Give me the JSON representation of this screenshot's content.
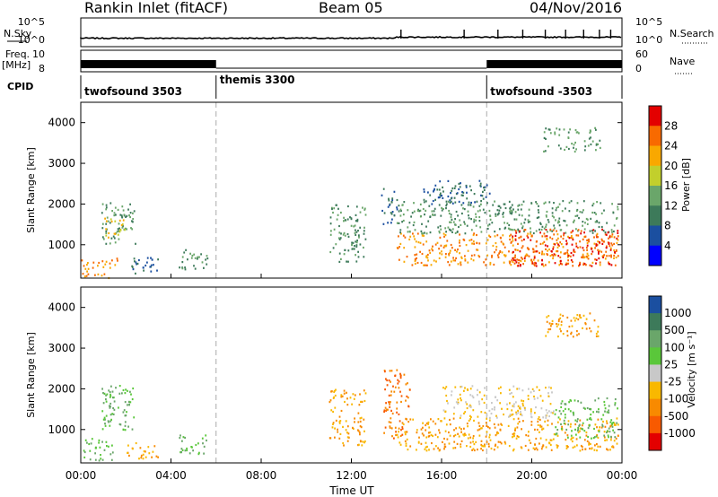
{
  "header": {
    "station": "Rankin Inlet (fitACF)",
    "beam": "Beam 05",
    "date": "04/Nov/2016"
  },
  "strips": {
    "nsky_label": "N.Sky",
    "nsky_ticks": [
      "10^5",
      "10^0"
    ],
    "nsearch_label": "N.Search",
    "nsearch_ticks": [
      "10^5",
      "10^0"
    ],
    "freq_label_1": "Freq.",
    "freq_label_2": "[MHz]",
    "freq_ticks": [
      "10",
      "8"
    ],
    "nave_label": "Nave",
    "nave_ticks": [
      "60",
      "0"
    ],
    "cpid_label": "CPID",
    "modes": [
      {
        "name": "twofsound 3503",
        "start": 0,
        "end": 6
      },
      {
        "name": "themis 3300",
        "start": 6,
        "end": 18
      },
      {
        "name": "twofsound -3503",
        "start": 18,
        "end": 24
      }
    ]
  },
  "chart_data": [
    {
      "type": "heatmap",
      "panel": "power",
      "xlabel": "",
      "ylabel": "Slant Range [km]",
      "xlim": [
        0,
        24
      ],
      "ylim": [
        180,
        4500
      ],
      "yticks": [
        "1000",
        "2000",
        "3000",
        "4000"
      ],
      "colorbar_label": "Power [dB]",
      "colorbar_ticks": [
        "28",
        "24",
        "20",
        "16",
        "12",
        "8",
        "4"
      ],
      "colorbar_colors": [
        "#e30000",
        "#f86a00",
        "#f9a800",
        "#c2cf2c",
        "#6aa66a",
        "#3d7a5a",
        "#1b4fa0",
        "#0000ff"
      ],
      "echo_regions": [
        {
          "t0": 0.0,
          "t1": 1.6,
          "r0": 200,
          "r1": 700,
          "level": 24
        },
        {
          "t0": 0.9,
          "t1": 2.4,
          "r0": 1000,
          "r1": 2100,
          "level": 12
        },
        {
          "t0": 1.0,
          "t1": 2.0,
          "r0": 1200,
          "r1": 1700,
          "level": 20
        },
        {
          "t0": 2.2,
          "t1": 3.4,
          "r0": 300,
          "r1": 700,
          "level": 8
        },
        {
          "t0": 4.3,
          "t1": 5.6,
          "r0": 400,
          "r1": 900,
          "level": 12
        },
        {
          "t0": 11.0,
          "t1": 12.6,
          "r0": 600,
          "r1": 2000,
          "level": 12
        },
        {
          "t0": 13.3,
          "t1": 14.0,
          "r0": 1500,
          "r1": 2400,
          "level": 8
        },
        {
          "t0": 14.0,
          "t1": 23.8,
          "r0": 500,
          "r1": 1300,
          "level": 24
        },
        {
          "t0": 14.0,
          "t1": 23.8,
          "r0": 1300,
          "r1": 2100,
          "level": 12
        },
        {
          "t0": 15.0,
          "t1": 18.2,
          "r0": 2000,
          "r1": 2600,
          "level": 8
        },
        {
          "t0": 19.0,
          "t1": 23.8,
          "r0": 500,
          "r1": 1400,
          "level": 28
        },
        {
          "t0": 20.5,
          "t1": 23.0,
          "r0": 3300,
          "r1": 3900,
          "level": 12
        }
      ]
    },
    {
      "type": "heatmap",
      "panel": "velocity",
      "xlabel": "Time UT",
      "ylabel": "Slant Range [km]",
      "xlim": [
        0,
        24
      ],
      "ylim": [
        180,
        4500
      ],
      "xticks": [
        "00:00",
        "04:00",
        "08:00",
        "12:00",
        "16:00",
        "20:00",
        "00:00"
      ],
      "yticks": [
        "1000",
        "2000",
        "3000",
        "4000"
      ],
      "colorbar_label": "Velocity [m s⁻¹]",
      "colorbar_ticks": [
        "1000",
        "500",
        "100",
        "25",
        "-25",
        "-100",
        "-500",
        "-1000"
      ],
      "colorbar_colors": [
        "#1b4fa0",
        "#3d7a5a",
        "#6aa66a",
        "#5ac73a",
        "#c8c8c8",
        "#f9b800",
        "#f88a00",
        "#f85a00",
        "#e30000"
      ],
      "echo_regions": [
        {
          "t0": 0.0,
          "t1": 1.4,
          "r0": 250,
          "r1": 800,
          "level": 100
        },
        {
          "t0": 0.9,
          "t1": 2.4,
          "r0": 1000,
          "r1": 2100,
          "level": 100
        },
        {
          "t0": 2.0,
          "t1": 3.4,
          "r0": 300,
          "r1": 700,
          "level": -100
        },
        {
          "t0": 4.3,
          "t1": 5.6,
          "r0": 400,
          "r1": 900,
          "level": 100
        },
        {
          "t0": 11.0,
          "t1": 12.6,
          "r0": 600,
          "r1": 2000,
          "level": -100
        },
        {
          "t0": 13.4,
          "t1": 14.6,
          "r0": 800,
          "r1": 2500,
          "level": -500
        },
        {
          "t0": 14.0,
          "t1": 23.8,
          "r0": 500,
          "r1": 1300,
          "level": -100
        },
        {
          "t0": 16.0,
          "t1": 21.0,
          "r0": 1300,
          "r1": 2100,
          "level": -25
        },
        {
          "t0": 21.0,
          "t1": 23.8,
          "r0": 800,
          "r1": 1800,
          "level": 100
        },
        {
          "t0": 20.5,
          "t1": 23.0,
          "r0": 3300,
          "r1": 3900,
          "level": -100
        }
      ]
    }
  ]
}
